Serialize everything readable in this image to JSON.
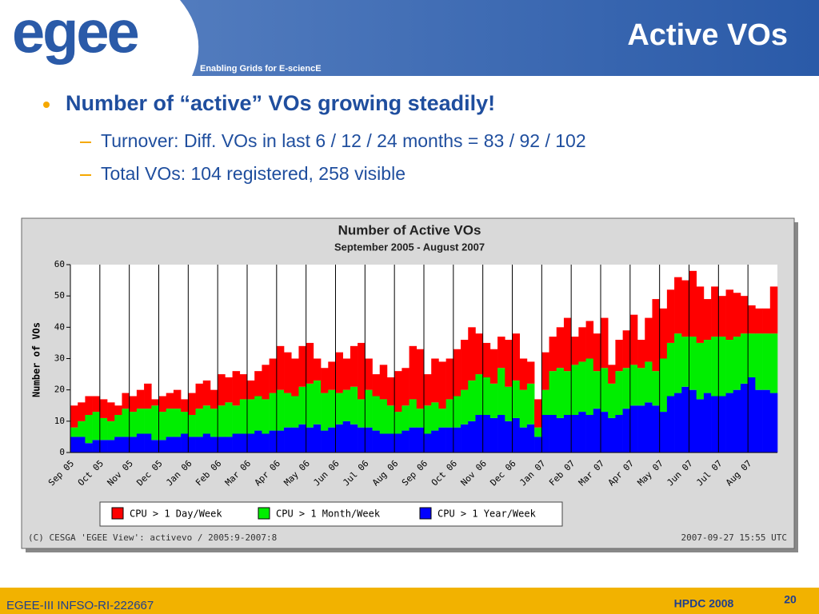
{
  "header": {
    "logo": "egee",
    "tagline": "Enabling Grids for E-sciencE",
    "title": "Active VOs"
  },
  "bullets": {
    "main": "Number of “active” VOs growing steadily!",
    "sub": [
      "Turnover:  Diff. VOs in last 6 / 12 / 24 months = 83 / 92 / 102",
      "Total VOs: 104 registered, 258 visible"
    ]
  },
  "chart_data": {
    "type": "stacked-bar",
    "title": "Number of Active VOs",
    "subtitle": "September 2005 - August 2007",
    "y_label": "Number of VOs",
    "ylim": [
      0,
      60
    ],
    "yticks": [
      0,
      10,
      20,
      30,
      40,
      50,
      60
    ],
    "categories": [
      "Sep 05",
      null,
      null,
      null,
      "Oct 05",
      null,
      null,
      null,
      "Nov 05",
      null,
      null,
      null,
      "Dec 05",
      null,
      null,
      null,
      "Jan 06",
      null,
      null,
      null,
      "Feb 06",
      null,
      null,
      null,
      "Mar 06",
      null,
      null,
      null,
      "Apr 06",
      null,
      null,
      null,
      "May 06",
      null,
      null,
      null,
      "Jun 06",
      null,
      null,
      null,
      "Jul 06",
      null,
      null,
      null,
      "Aug 06",
      null,
      null,
      null,
      "Sep 06",
      null,
      null,
      null,
      "Oct 06",
      null,
      null,
      null,
      "Nov 06",
      null,
      null,
      null,
      "Dec 06",
      null,
      null,
      null,
      "Jan 07",
      null,
      null,
      null,
      "Feb 07",
      null,
      null,
      null,
      "Mar 07",
      null,
      null,
      null,
      "Apr 07",
      null,
      null,
      null,
      "May 07",
      null,
      null,
      null,
      "Jun 07",
      null,
      null,
      null,
      "Jul 07",
      null,
      null,
      null,
      "Aug 07",
      null,
      null,
      null
    ],
    "series": [
      {
        "name": "CPU > 1 Day/Week",
        "color": "#ff0000",
        "values": [
          7,
          6,
          6,
          5,
          6,
          6,
          3,
          5,
          5,
          6,
          8,
          2,
          5,
          5,
          6,
          4,
          7,
          8,
          8,
          6,
          10,
          8,
          11,
          8,
          6,
          8,
          11,
          11,
          14,
          13,
          12,
          13,
          13,
          7,
          8,
          9,
          13,
          10,
          13,
          18,
          10,
          7,
          11,
          9,
          13,
          12,
          17,
          19,
          10,
          14,
          15,
          13,
          15,
          16,
          17,
          13,
          11,
          11,
          10,
          15,
          15,
          10,
          7,
          9,
          12,
          11,
          13,
          17,
          9,
          11,
          12,
          12,
          16,
          6,
          10,
          12,
          16,
          9,
          14,
          23,
          16,
          17,
          18,
          18,
          21,
          18,
          13,
          16,
          13,
          16,
          14,
          12,
          9,
          8,
          8,
          15
        ]
      },
      {
        "name": "CPU > 1 Month/Week",
        "color": "#00ee00",
        "values": [
          3,
          5,
          9,
          9,
          7,
          6,
          7,
          9,
          8,
          8,
          8,
          11,
          9,
          9,
          9,
          7,
          7,
          9,
          9,
          9,
          10,
          11,
          9,
          11,
          11,
          11,
          11,
          12,
          13,
          11,
          10,
          12,
          14,
          14,
          12,
          12,
          10,
          10,
          12,
          9,
          12,
          11,
          11,
          9,
          7,
          8,
          9,
          6,
          9,
          9,
          6,
          9,
          10,
          11,
          13,
          13,
          12,
          11,
          15,
          11,
          12,
          12,
          13,
          3,
          8,
          14,
          16,
          14,
          16,
          16,
          18,
          12,
          14,
          11,
          14,
          13,
          13,
          12,
          13,
          11,
          17,
          17,
          19,
          16,
          17,
          18,
          17,
          19,
          19,
          17,
          17,
          16,
          14,
          18,
          18,
          19
        ]
      },
      {
        "name": "CPU > 1 Year/Week",
        "color": "#0000ff",
        "values": [
          5,
          5,
          3,
          4,
          4,
          4,
          5,
          5,
          5,
          6,
          6,
          4,
          4,
          5,
          5,
          6,
          5,
          5,
          6,
          5,
          5,
          5,
          6,
          6,
          6,
          7,
          6,
          7,
          7,
          8,
          8,
          9,
          8,
          9,
          7,
          8,
          9,
          10,
          9,
          8,
          8,
          7,
          6,
          6,
          6,
          7,
          8,
          8,
          6,
          7,
          8,
          8,
          8,
          9,
          10,
          12,
          12,
          11,
          12,
          10,
          11,
          8,
          9,
          5,
          12,
          12,
          11,
          12,
          12,
          13,
          12,
          14,
          13,
          11,
          12,
          14,
          15,
          15,
          16,
          15,
          13,
          18,
          19,
          21,
          20,
          17,
          19,
          18,
          18,
          19,
          20,
          22,
          24,
          20,
          20,
          19
        ]
      }
    ],
    "footnote_left": "(C) CESGA 'EGEE View': activevo / 2005:9-2007:8",
    "footnote_right": "2007-09-27 15:55 UTC"
  },
  "footer": {
    "left": "EGEE-III INFSO-RI-222667",
    "center": "HPDC 2008",
    "page": "20"
  }
}
